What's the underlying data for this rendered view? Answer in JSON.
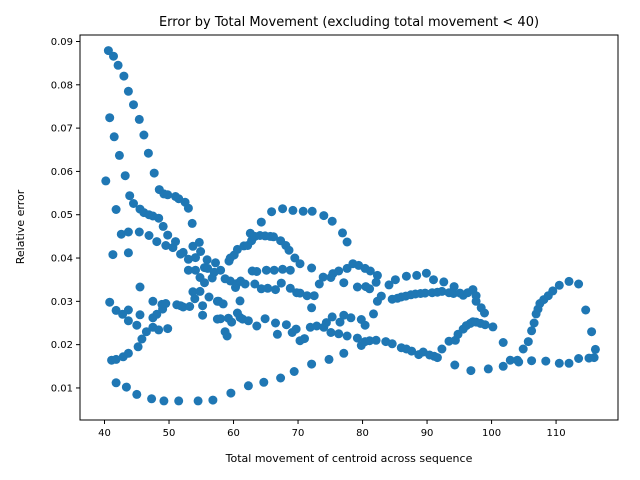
{
  "chart_data": {
    "type": "scatter",
    "title": "Error by Total Movement (excluding total movement < 40)",
    "xlabel": "Total movement of centroid across sequence",
    "ylabel": "Relative error",
    "xlim": [
      36.2,
      119.6
    ],
    "ylim": [
      0.0026,
      0.0915
    ],
    "xticks": [
      40,
      50,
      60,
      70,
      80,
      90,
      100,
      110
    ],
    "xtick_labels": [
      "40",
      "50",
      "60",
      "70",
      "80",
      "90",
      "100",
      "110"
    ],
    "yticks": [
      0.01,
      0.02,
      0.03,
      0.04,
      0.05,
      0.06,
      0.07,
      0.08,
      0.09
    ],
    "ytick_labels": [
      "0.01",
      "0.02",
      "0.03",
      "0.04",
      "0.05",
      "0.06",
      "0.07",
      "0.08",
      "0.09"
    ],
    "grid": false,
    "color": "#1f77b4",
    "points": [
      [
        40.2,
        0.0578
      ],
      [
        40.6,
        0.0879
      ],
      [
        40.8,
        0.0724
      ],
      [
        40.8,
        0.0298
      ],
      [
        41.1,
        0.0164
      ],
      [
        41.3,
        0.0408
      ],
      [
        41.4,
        0.0866
      ],
      [
        41.5,
        0.068
      ],
      [
        41.8,
        0.0512
      ],
      [
        41.8,
        0.0279
      ],
      [
        41.8,
        0.0166
      ],
      [
        41.8,
        0.0112
      ],
      [
        42.1,
        0.0845
      ],
      [
        42.3,
        0.0637
      ],
      [
        42.6,
        0.0455
      ],
      [
        42.8,
        0.027
      ],
      [
        42.9,
        0.0172
      ],
      [
        43.0,
        0.082
      ],
      [
        43.2,
        0.059
      ],
      [
        43.4,
        0.0102
      ],
      [
        43.7,
        0.0785
      ],
      [
        43.7,
        0.0412
      ],
      [
        43.7,
        0.046
      ],
      [
        43.7,
        0.028
      ],
      [
        43.7,
        0.0255
      ],
      [
        43.7,
        0.018
      ],
      [
        43.9,
        0.0544
      ],
      [
        44.5,
        0.0754
      ],
      [
        44.5,
        0.0526
      ],
      [
        45.0,
        0.0245
      ],
      [
        45.0,
        0.0085
      ],
      [
        45.2,
        0.0195
      ],
      [
        45.4,
        0.072
      ],
      [
        45.4,
        0.046
      ],
      [
        45.5,
        0.0513
      ],
      [
        45.5,
        0.0333
      ],
      [
        45.5,
        0.0269
      ],
      [
        45.8,
        0.0213
      ],
      [
        46.1,
        0.0684
      ],
      [
        46.1,
        0.0505
      ],
      [
        46.5,
        0.023
      ],
      [
        46.8,
        0.0642
      ],
      [
        46.9,
        0.05
      ],
      [
        46.9,
        0.0452
      ],
      [
        47.3,
        0.0075
      ],
      [
        47.5,
        0.0497
      ],
      [
        47.5,
        0.0262
      ],
      [
        47.5,
        0.024
      ],
      [
        47.5,
        0.03
      ],
      [
        47.7,
        0.0596
      ],
      [
        48.1,
        0.0438
      ],
      [
        48.1,
        0.027
      ],
      [
        48.4,
        0.0234
      ],
      [
        48.4,
        0.0492
      ],
      [
        48.5,
        0.0558
      ],
      [
        48.9,
        0.0293
      ],
      [
        49.0,
        0.0282
      ],
      [
        49.1,
        0.0473
      ],
      [
        49.2,
        0.007
      ],
      [
        49.2,
        0.0548
      ],
      [
        49.5,
        0.0429
      ],
      [
        49.5,
        0.0295
      ],
      [
        49.8,
        0.0546
      ],
      [
        49.8,
        0.0453
      ],
      [
        49.8,
        0.0237
      ],
      [
        50.6,
        0.0424
      ],
      [
        51.0,
        0.0438
      ],
      [
        51.0,
        0.0542
      ],
      [
        51.2,
        0.0292
      ],
      [
        51.5,
        0.0537
      ],
      [
        51.5,
        0.007
      ],
      [
        51.8,
        0.029
      ],
      [
        51.8,
        0.0409
      ],
      [
        52.2,
        0.0413
      ],
      [
        52.2,
        0.0287
      ],
      [
        52.5,
        0.0529
      ],
      [
        53.0,
        0.0397
      ],
      [
        53.0,
        0.0372
      ],
      [
        53.0,
        0.0515
      ],
      [
        53.2,
        0.0288
      ],
      [
        53.6,
        0.048
      ],
      [
        53.7,
        0.0427
      ],
      [
        53.7,
        0.0322
      ],
      [
        54.0,
        0.0306
      ],
      [
        54.1,
        0.0372
      ],
      [
        54.1,
        0.0401
      ],
      [
        54.5,
        0.007
      ],
      [
        54.7,
        0.0436
      ],
      [
        54.8,
        0.0323
      ],
      [
        54.8,
        0.0355
      ],
      [
        54.9,
        0.0415
      ],
      [
        55.2,
        0.029
      ],
      [
        55.2,
        0.0268
      ],
      [
        55.5,
        0.0343
      ],
      [
        55.5,
        0.0378
      ],
      [
        55.9,
        0.0396
      ],
      [
        56.0,
        0.0376
      ],
      [
        56.2,
        0.031
      ],
      [
        56.7,
        0.0354
      ],
      [
        56.8,
        0.0072
      ],
      [
        57.0,
        0.0367
      ],
      [
        57.2,
        0.0389
      ],
      [
        57.5,
        0.03
      ],
      [
        57.5,
        0.0259
      ],
      [
        57.7,
        0.03
      ],
      [
        58.0,
        0.0372
      ],
      [
        58.0,
        0.026
      ],
      [
        58.4,
        0.0294
      ],
      [
        58.7,
        0.0352
      ],
      [
        58.7,
        0.023
      ],
      [
        59.0,
        0.022
      ],
      [
        59.2,
        0.0261
      ],
      [
        59.3,
        0.0393
      ],
      [
        59.5,
        0.0347
      ],
      [
        59.5,
        0.04
      ],
      [
        59.6,
        0.0088
      ],
      [
        59.7,
        0.0252
      ],
      [
        60.1,
        0.0407
      ],
      [
        60.3,
        0.0332
      ],
      [
        60.5,
        0.0341
      ],
      [
        60.6,
        0.0273
      ],
      [
        60.6,
        0.042
      ],
      [
        61.0,
        0.0263
      ],
      [
        61.0,
        0.0301
      ],
      [
        61.1,
        0.0347
      ],
      [
        61.4,
        0.0259
      ],
      [
        61.6,
        0.0428
      ],
      [
        61.8,
        0.034
      ],
      [
        62.2,
        0.0429
      ],
      [
        62.3,
        0.0105
      ],
      [
        62.3,
        0.0255
      ],
      [
        62.6,
        0.0457
      ],
      [
        62.8,
        0.044
      ],
      [
        62.9,
        0.037
      ],
      [
        63.3,
        0.045
      ],
      [
        63.3,
        0.034
      ],
      [
        63.6,
        0.0243
      ],
      [
        63.6,
        0.0369
      ],
      [
        64.1,
        0.0452
      ],
      [
        64.3,
        0.0483
      ],
      [
        64.3,
        0.0329
      ],
      [
        64.7,
        0.0113
      ],
      [
        64.9,
        0.0451
      ],
      [
        64.9,
        0.026
      ],
      [
        65.1,
        0.0372
      ],
      [
        65.3,
        0.033
      ],
      [
        65.7,
        0.045
      ],
      [
        65.9,
        0.0507
      ],
      [
        66.2,
        0.0449
      ],
      [
        66.3,
        0.0372
      ],
      [
        66.5,
        0.025
      ],
      [
        66.5,
        0.0327
      ],
      [
        66.8,
        0.0224
      ],
      [
        67.3,
        0.044
      ],
      [
        67.3,
        0.0123
      ],
      [
        67.4,
        0.0342
      ],
      [
        67.6,
        0.0514
      ],
      [
        67.6,
        0.0374
      ],
      [
        68.1,
        0.0429
      ],
      [
        68.2,
        0.0246
      ],
      [
        68.6,
        0.0418
      ],
      [
        68.8,
        0.0372
      ],
      [
        68.8,
        0.033
      ],
      [
        69.1,
        0.0228
      ],
      [
        69.2,
        0.051
      ],
      [
        69.4,
        0.0138
      ],
      [
        69.5,
        0.04
      ],
      [
        69.7,
        0.0236
      ],
      [
        69.8,
        0.032
      ],
      [
        70.3,
        0.0387
      ],
      [
        70.3,
        0.0209
      ],
      [
        70.3,
        0.0319
      ],
      [
        70.8,
        0.0508
      ],
      [
        71.0,
        0.0214
      ],
      [
        71.4,
        0.0313
      ],
      [
        71.9,
        0.024
      ],
      [
        72.1,
        0.0377
      ],
      [
        72.1,
        0.0155
      ],
      [
        72.1,
        0.0285
      ],
      [
        72.2,
        0.0508
      ],
      [
        72.5,
        0.0313
      ],
      [
        72.9,
        0.0243
      ],
      [
        73.3,
        0.034
      ],
      [
        73.9,
        0.0356
      ],
      [
        74.0,
        0.0498
      ],
      [
        74.0,
        0.024
      ],
      [
        74.4,
        0.0251
      ],
      [
        74.8,
        0.0166
      ],
      [
        75.1,
        0.0355
      ],
      [
        75.1,
        0.0228
      ],
      [
        75.3,
        0.0485
      ],
      [
        75.3,
        0.0264
      ],
      [
        75.4,
        0.0364
      ],
      [
        76.3,
        0.0225
      ],
      [
        76.3,
        0.037
      ],
      [
        76.5,
        0.0252
      ],
      [
        76.9,
        0.0458
      ],
      [
        77.1,
        0.018
      ],
      [
        77.1,
        0.0268
      ],
      [
        77.1,
        0.0343
      ],
      [
        77.6,
        0.0437
      ],
      [
        77.6,
        0.022
      ],
      [
        77.6,
        0.0376
      ],
      [
        78.2,
        0.0262
      ],
      [
        78.5,
        0.0387
      ],
      [
        79.2,
        0.0215
      ],
      [
        79.2,
        0.0333
      ],
      [
        79.4,
        0.0383
      ],
      [
        79.8,
        0.0198
      ],
      [
        79.8,
        0.0258
      ],
      [
        80.4,
        0.0376
      ],
      [
        80.4,
        0.0245
      ],
      [
        80.4,
        0.0207
      ],
      [
        80.5,
        0.0334
      ],
      [
        81.1,
        0.0209
      ],
      [
        81.1,
        0.0329
      ],
      [
        81.2,
        0.037
      ],
      [
        81.7,
        0.0271
      ],
      [
        82.1,
        0.021
      ],
      [
        82.1,
        0.0344
      ],
      [
        82.3,
        0.03
      ],
      [
        82.3,
        0.036
      ],
      [
        82.9,
        0.0312
      ],
      [
        83.6,
        0.0207
      ],
      [
        84.1,
        0.0338
      ],
      [
        84.6,
        0.0305
      ],
      [
        84.6,
        0.0202
      ],
      [
        85.1,
        0.035
      ],
      [
        85.4,
        0.0307
      ],
      [
        86.0,
        0.0193
      ],
      [
        86.0,
        0.031
      ],
      [
        86.7,
        0.0312
      ],
      [
        86.8,
        0.0358
      ],
      [
        86.8,
        0.019
      ],
      [
        87.5,
        0.0315
      ],
      [
        87.6,
        0.0185
      ],
      [
        88.2,
        0.0317
      ],
      [
        88.4,
        0.036
      ],
      [
        88.7,
        0.0177
      ],
      [
        89.0,
        0.0318
      ],
      [
        89.4,
        0.0183
      ],
      [
        89.7,
        0.0319
      ],
      [
        89.9,
        0.0365
      ],
      [
        90.4,
        0.0176
      ],
      [
        90.8,
        0.032
      ],
      [
        91.0,
        0.035
      ],
      [
        91.1,
        0.0173
      ],
      [
        91.6,
        0.0321
      ],
      [
        91.6,
        0.017
      ],
      [
        92.3,
        0.019
      ],
      [
        92.3,
        0.0323
      ],
      [
        92.6,
        0.0345
      ],
      [
        93.4,
        0.0208
      ],
      [
        93.4,
        0.032
      ],
      [
        94.1,
        0.0318
      ],
      [
        94.2,
        0.0334
      ],
      [
        94.3,
        0.0153
      ],
      [
        94.4,
        0.021
      ],
      [
        94.8,
        0.0224
      ],
      [
        95.1,
        0.0319
      ],
      [
        95.6,
        0.0236
      ],
      [
        95.6,
        0.0314
      ],
      [
        96.1,
        0.0244
      ],
      [
        96.3,
        0.032
      ],
      [
        96.7,
        0.0249
      ],
      [
        96.8,
        0.014
      ],
      [
        97.1,
        0.0327
      ],
      [
        97.1,
        0.0253
      ],
      [
        97.6,
        0.0313
      ],
      [
        97.6,
        0.03
      ],
      [
        97.6,
        0.0252
      ],
      [
        98.3,
        0.0249
      ],
      [
        98.4,
        0.0285
      ],
      [
        98.9,
        0.0273
      ],
      [
        99.0,
        0.0246
      ],
      [
        99.5,
        0.0144
      ],
      [
        100.2,
        0.0241
      ],
      [
        101.8,
        0.0205
      ],
      [
        101.8,
        0.015
      ],
      [
        102.9,
        0.0164
      ],
      [
        104.0,
        0.0164
      ],
      [
        104.2,
        0.016
      ],
      [
        104.9,
        0.019
      ],
      [
        105.7,
        0.0207
      ],
      [
        106.2,
        0.0232
      ],
      [
        106.2,
        0.0163
      ],
      [
        106.6,
        0.025
      ],
      [
        106.9,
        0.0271
      ],
      [
        107.2,
        0.0282
      ],
      [
        107.5,
        0.0295
      ],
      [
        108.1,
        0.0304
      ],
      [
        108.4,
        0.0162
      ],
      [
        108.8,
        0.0313
      ],
      [
        109.5,
        0.0324
      ],
      [
        110.5,
        0.0337
      ],
      [
        110.5,
        0.0157
      ],
      [
        112.0,
        0.0346
      ],
      [
        112.0,
        0.0157
      ],
      [
        113.5,
        0.034
      ],
      [
        113.5,
        0.0168
      ],
      [
        114.6,
        0.028
      ],
      [
        115.1,
        0.0169
      ],
      [
        115.5,
        0.023
      ],
      [
        115.9,
        0.017
      ],
      [
        116.1,
        0.0189
      ]
    ]
  }
}
